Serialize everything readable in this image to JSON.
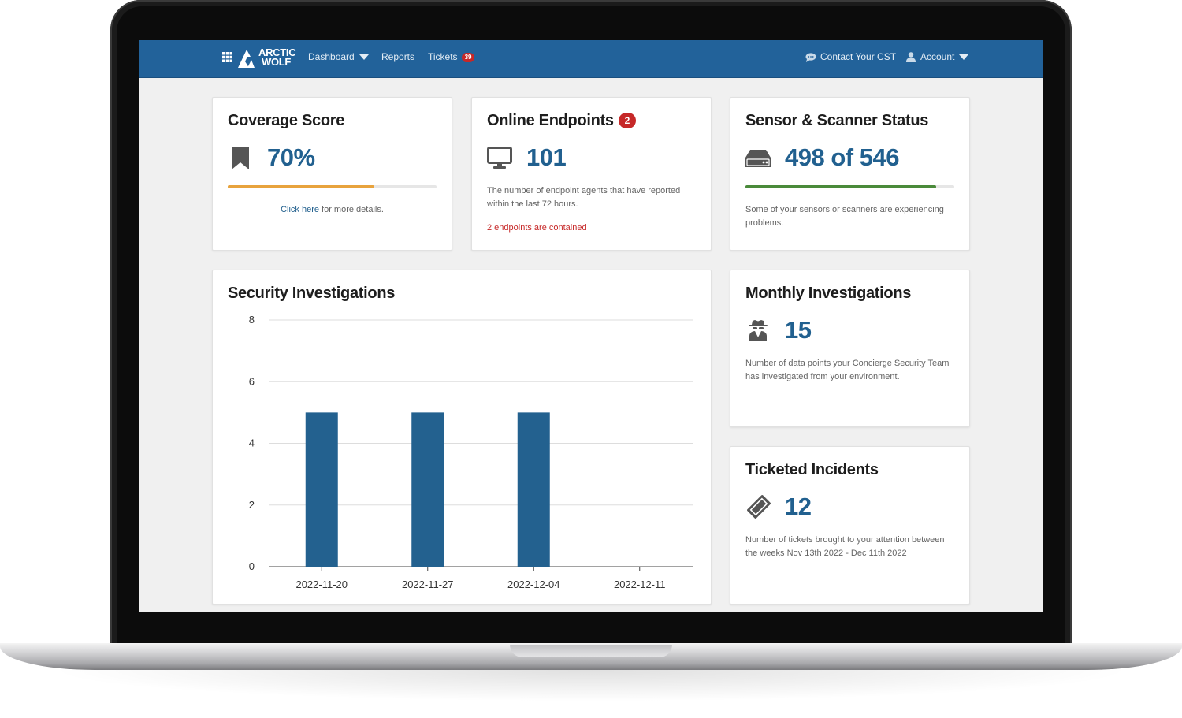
{
  "nav": {
    "brand_line1": "ARCTIC",
    "brand_line2": "WOLF",
    "dashboard_label": "Dashboard",
    "reports_label": "Reports",
    "tickets_label": "Tickets",
    "tickets_count": "39",
    "contact_label": "Contact Your CST",
    "account_label": "Account"
  },
  "coverage": {
    "title": "Coverage Score",
    "value": "70%",
    "progress_fraction": 0.7,
    "progress_color": "#e8a33d",
    "link_text": "Click here",
    "link_suffix": " for more details."
  },
  "endpoints": {
    "title": "Online Endpoints",
    "badge": "2",
    "value": "101",
    "description": "The number of endpoint agents that have reported within the last 72 hours.",
    "alert": "2 endpoints are contained"
  },
  "sensors": {
    "title": "Sensor & Scanner Status",
    "value": "498 of 546",
    "progress_fraction": 0.912,
    "progress_color": "#4a8a3a",
    "description": "Some of your sensors or scanners are experiencing problems."
  },
  "security": {
    "title": "Security Investigations"
  },
  "monthly": {
    "title": "Monthly Investigations",
    "value": "15",
    "description": "Number of data points your Concierge Security Team has investigated from your environment."
  },
  "ticketed": {
    "title": "Ticketed Incidents",
    "value": "12",
    "description": "Number of tickets brought to your attention between the weeks Nov 13th 2022 - Dec 11th 2022"
  },
  "colors": {
    "nav_bg": "#22629a",
    "accent": "#21608f",
    "alert": "#c62828"
  },
  "chart_data": {
    "type": "bar",
    "title": "Security Investigations",
    "categories": [
      "2022-11-20",
      "2022-11-27",
      "2022-12-04",
      "2022-12-11"
    ],
    "values": [
      5,
      5,
      5,
      0
    ],
    "ylim": [
      0,
      8
    ],
    "yticks": [
      0,
      2,
      4,
      6,
      8
    ],
    "grid": true,
    "color": "#23618f"
  }
}
